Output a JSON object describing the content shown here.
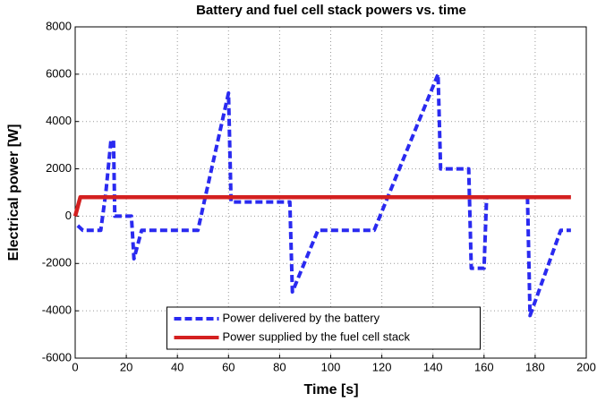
{
  "chart_data": {
    "type": "line",
    "title": "Battery and fuel cell stack powers vs. time",
    "x_label": "Time [s]",
    "y_label": "Electrical power [W]",
    "xlim": [
      0,
      200
    ],
    "xticks": [
      0,
      20,
      40,
      60,
      80,
      100,
      120,
      140,
      160,
      180,
      200
    ],
    "ylim": [
      -6000,
      8000
    ],
    "yticks": [
      -6000,
      -4000,
      -2000,
      0,
      2000,
      4000,
      6000,
      8000
    ],
    "grid": true,
    "legend": "lower center",
    "series": [
      {
        "name": "Power delivered by the battery",
        "color": "#2a2af0",
        "dash": true,
        "x": [
          1,
          3,
          10,
          12,
          14,
          15,
          15.5,
          22,
          23,
          26,
          48,
          60,
          61,
          84,
          85,
          95,
          117,
          142,
          143,
          154,
          155,
          160,
          161,
          177,
          178,
          190,
          194
        ],
        "values": [
          -400,
          -600,
          -600,
          1000,
          3200,
          3200,
          0,
          0,
          -1800,
          -600,
          -600,
          5200,
          600,
          600,
          -3200,
          -600,
          -600,
          6000,
          2000,
          2000,
          -2200,
          -2200,
          800,
          800,
          -4200,
          -600,
          -600
        ]
      },
      {
        "name": "Power supplied by the fuel cell stack",
        "color": "#d42020",
        "dash": false,
        "x": [
          0,
          1,
          2,
          194
        ],
        "values": [
          0,
          400,
          800,
          800
        ]
      }
    ]
  }
}
